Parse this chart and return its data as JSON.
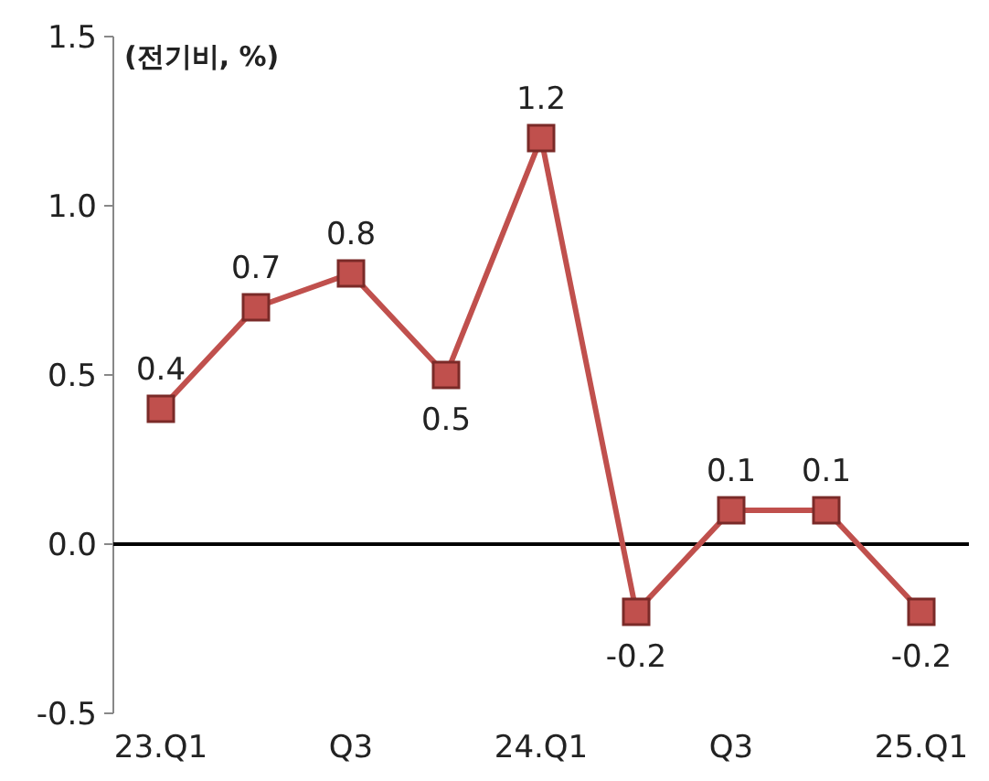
{
  "chart_data": {
    "type": "line",
    "ylabel": "(전기비, %)",
    "categories": [
      "23.Q1",
      null,
      "Q3",
      null,
      "24.Q1",
      null,
      "Q3",
      null,
      "25.Q1"
    ],
    "series": [
      {
        "color": "#c0504d",
        "values": [
          0.4,
          0.7,
          0.8,
          0.5,
          1.2,
          -0.2,
          0.1,
          0.1,
          -0.2
        ]
      }
    ],
    "ylim": [
      -0.5,
      1.5
    ],
    "yticks": [
      {
        "value": -0.5,
        "label": "-0.5"
      },
      {
        "value": 0,
        "label": "0.0"
      },
      {
        "value": 0.5,
        "label": "0.5"
      },
      {
        "value": 1,
        "label": "1.0"
      },
      {
        "value": 1.5,
        "label": "1.5"
      }
    ],
    "marker": "square",
    "data_labels": true
  }
}
